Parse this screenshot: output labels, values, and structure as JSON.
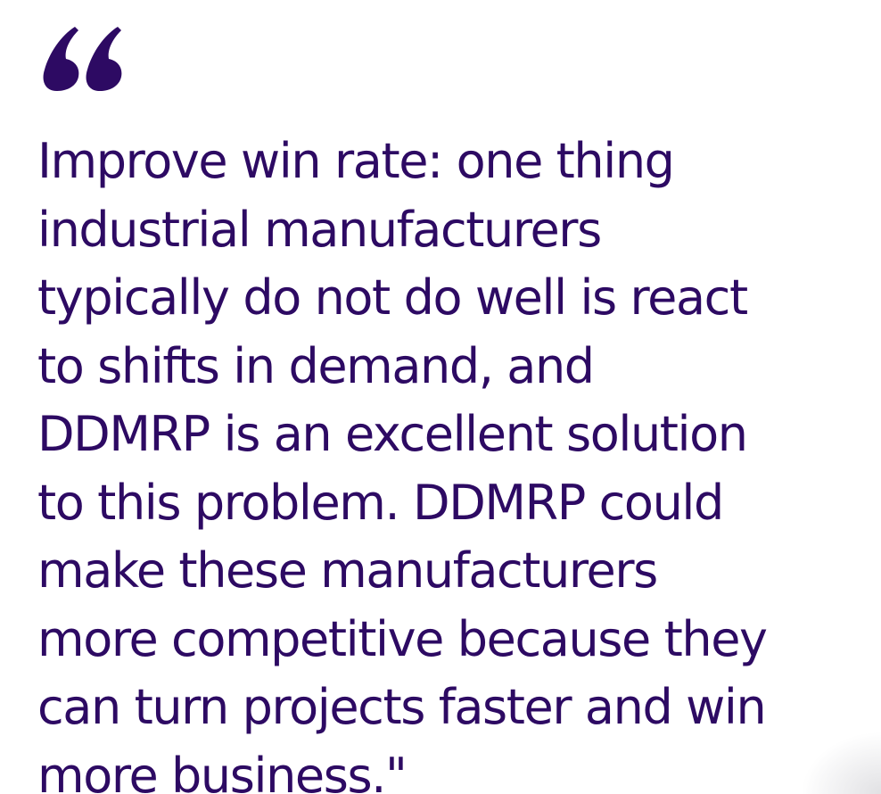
{
  "quote": {
    "icon": "open-quote-icon",
    "color": "#2d0a63",
    "lines": [
      "Improve win rate: one thing",
      "industrial manufacturers",
      "typically do not do well is react",
      "to shifts in demand, and",
      "DDMRP is an excellent solution",
      "to this problem. DDMRP could",
      "make these manufacturers",
      "more competitive because they",
      "can turn projects faster and win",
      "more business.\""
    ]
  }
}
